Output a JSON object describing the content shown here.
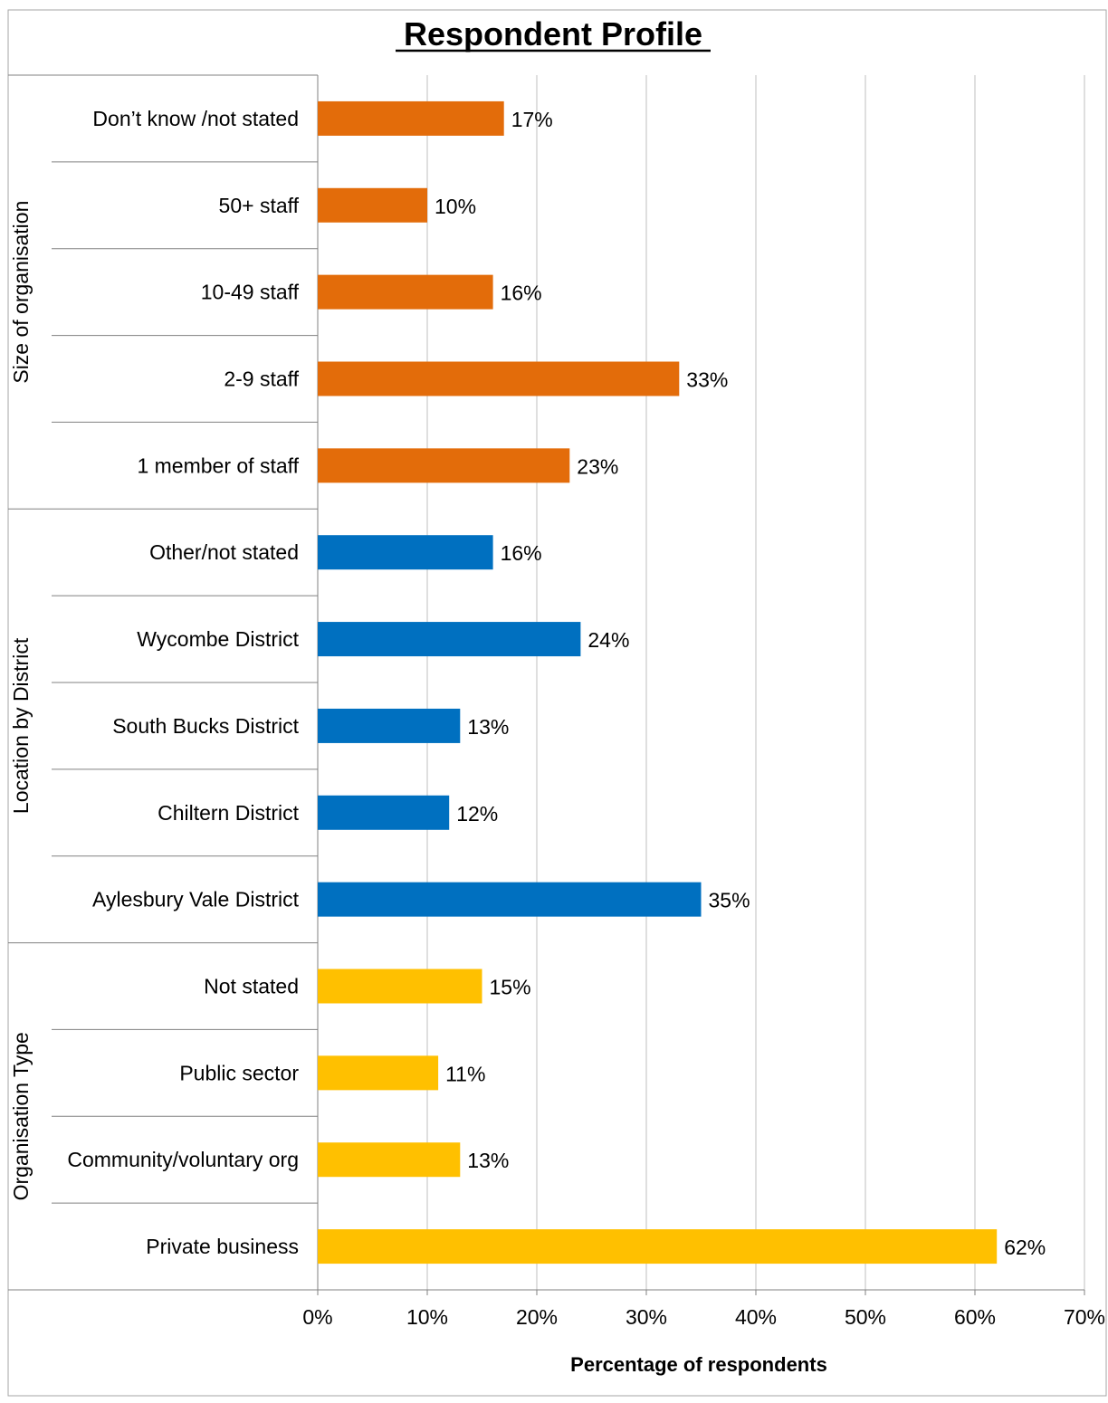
{
  "chart_data": {
    "type": "bar",
    "orientation": "horizontal",
    "title": "Respondent Profile",
    "xlabel": "Percentage of respondents",
    "ylabel": "",
    "xlim": [
      0,
      70
    ],
    "x_ticks": [
      "0%",
      "10%",
      "20%",
      "30%",
      "40%",
      "50%",
      "60%",
      "70%"
    ],
    "grid": "vertical",
    "legend": "none",
    "groups": [
      {
        "name": "Size of organisation",
        "color": "#E36C0A",
        "categories": [
          "Don’t know /not stated",
          "50+ staff",
          "10-49 staff",
          "2-9 staff",
          "1 member of staff"
        ],
        "values": [
          17,
          10,
          16,
          33,
          23
        ],
        "labels": [
          "17%",
          "10%",
          "16%",
          "33%",
          "23%"
        ]
      },
      {
        "name": "Location by District",
        "color": "#0070C0",
        "categories": [
          "Other/not stated",
          "Wycombe District",
          "South Bucks District",
          "Chiltern District",
          "Aylesbury Vale District"
        ],
        "values": [
          16,
          24,
          13,
          12,
          35
        ],
        "labels": [
          "16%",
          "24%",
          "13%",
          "12%",
          "35%"
        ]
      },
      {
        "name": "Organisation Type",
        "color": "#FFC000",
        "categories": [
          "Not stated",
          "Public sector",
          "Community/voluntary org",
          "Private business"
        ],
        "values": [
          15,
          11,
          13,
          62
        ],
        "labels": [
          "15%",
          "11%",
          "13%",
          "62%"
        ]
      }
    ]
  }
}
